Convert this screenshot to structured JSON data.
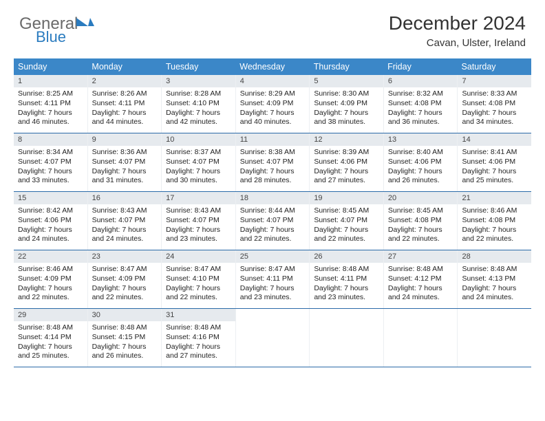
{
  "logo": {
    "gray": "General",
    "blue": "Blue"
  },
  "title": "December 2024",
  "location": "Cavan, Ulster, Ireland",
  "colors": {
    "header_bg": "#3b87c8",
    "header_text": "#ffffff",
    "daynum_bg": "#e6eaee",
    "row_border": "#2a6aa8",
    "logo_gray": "#6a6a6a",
    "logo_blue": "#2a7bbf"
  },
  "weekdays": [
    "Sunday",
    "Monday",
    "Tuesday",
    "Wednesday",
    "Thursday",
    "Friday",
    "Saturday"
  ],
  "weeks": [
    [
      {
        "d": "1",
        "sr": "8:25 AM",
        "ss": "4:11 PM",
        "dl": "7 hours and 46 minutes."
      },
      {
        "d": "2",
        "sr": "8:26 AM",
        "ss": "4:11 PM",
        "dl": "7 hours and 44 minutes."
      },
      {
        "d": "3",
        "sr": "8:28 AM",
        "ss": "4:10 PM",
        "dl": "7 hours and 42 minutes."
      },
      {
        "d": "4",
        "sr": "8:29 AM",
        "ss": "4:09 PM",
        "dl": "7 hours and 40 minutes."
      },
      {
        "d": "5",
        "sr": "8:30 AM",
        "ss": "4:09 PM",
        "dl": "7 hours and 38 minutes."
      },
      {
        "d": "6",
        "sr": "8:32 AM",
        "ss": "4:08 PM",
        "dl": "7 hours and 36 minutes."
      },
      {
        "d": "7",
        "sr": "8:33 AM",
        "ss": "4:08 PM",
        "dl": "7 hours and 34 minutes."
      }
    ],
    [
      {
        "d": "8",
        "sr": "8:34 AM",
        "ss": "4:07 PM",
        "dl": "7 hours and 33 minutes."
      },
      {
        "d": "9",
        "sr": "8:36 AM",
        "ss": "4:07 PM",
        "dl": "7 hours and 31 minutes."
      },
      {
        "d": "10",
        "sr": "8:37 AM",
        "ss": "4:07 PM",
        "dl": "7 hours and 30 minutes."
      },
      {
        "d": "11",
        "sr": "8:38 AM",
        "ss": "4:07 PM",
        "dl": "7 hours and 28 minutes."
      },
      {
        "d": "12",
        "sr": "8:39 AM",
        "ss": "4:06 PM",
        "dl": "7 hours and 27 minutes."
      },
      {
        "d": "13",
        "sr": "8:40 AM",
        "ss": "4:06 PM",
        "dl": "7 hours and 26 minutes."
      },
      {
        "d": "14",
        "sr": "8:41 AM",
        "ss": "4:06 PM",
        "dl": "7 hours and 25 minutes."
      }
    ],
    [
      {
        "d": "15",
        "sr": "8:42 AM",
        "ss": "4:06 PM",
        "dl": "7 hours and 24 minutes."
      },
      {
        "d": "16",
        "sr": "8:43 AM",
        "ss": "4:07 PM",
        "dl": "7 hours and 24 minutes."
      },
      {
        "d": "17",
        "sr": "8:43 AM",
        "ss": "4:07 PM",
        "dl": "7 hours and 23 minutes."
      },
      {
        "d": "18",
        "sr": "8:44 AM",
        "ss": "4:07 PM",
        "dl": "7 hours and 22 minutes."
      },
      {
        "d": "19",
        "sr": "8:45 AM",
        "ss": "4:07 PM",
        "dl": "7 hours and 22 minutes."
      },
      {
        "d": "20",
        "sr": "8:45 AM",
        "ss": "4:08 PM",
        "dl": "7 hours and 22 minutes."
      },
      {
        "d": "21",
        "sr": "8:46 AM",
        "ss": "4:08 PM",
        "dl": "7 hours and 22 minutes."
      }
    ],
    [
      {
        "d": "22",
        "sr": "8:46 AM",
        "ss": "4:09 PM",
        "dl": "7 hours and 22 minutes."
      },
      {
        "d": "23",
        "sr": "8:47 AM",
        "ss": "4:09 PM",
        "dl": "7 hours and 22 minutes."
      },
      {
        "d": "24",
        "sr": "8:47 AM",
        "ss": "4:10 PM",
        "dl": "7 hours and 22 minutes."
      },
      {
        "d": "25",
        "sr": "8:47 AM",
        "ss": "4:11 PM",
        "dl": "7 hours and 23 minutes."
      },
      {
        "d": "26",
        "sr": "8:48 AM",
        "ss": "4:11 PM",
        "dl": "7 hours and 23 minutes."
      },
      {
        "d": "27",
        "sr": "8:48 AM",
        "ss": "4:12 PM",
        "dl": "7 hours and 24 minutes."
      },
      {
        "d": "28",
        "sr": "8:48 AM",
        "ss": "4:13 PM",
        "dl": "7 hours and 24 minutes."
      }
    ],
    [
      {
        "d": "29",
        "sr": "8:48 AM",
        "ss": "4:14 PM",
        "dl": "7 hours and 25 minutes."
      },
      {
        "d": "30",
        "sr": "8:48 AM",
        "ss": "4:15 PM",
        "dl": "7 hours and 26 minutes."
      },
      {
        "d": "31",
        "sr": "8:48 AM",
        "ss": "4:16 PM",
        "dl": "7 hours and 27 minutes."
      },
      null,
      null,
      null,
      null
    ]
  ],
  "labels": {
    "sunrise": "Sunrise:",
    "sunset": "Sunset:",
    "daylight": "Daylight:"
  }
}
